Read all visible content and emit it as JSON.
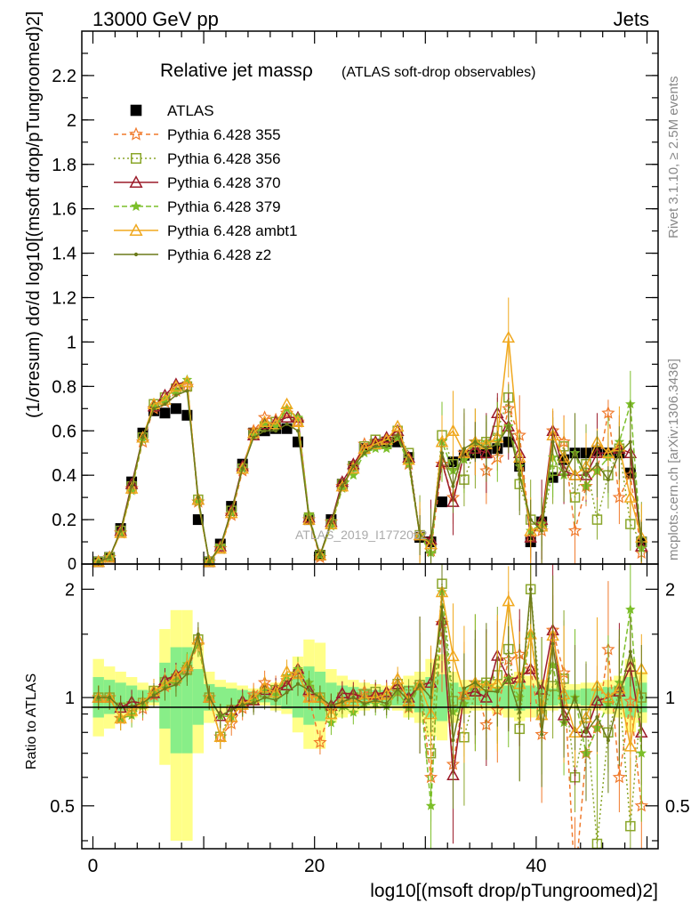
{
  "header": {
    "left": "13000 GeV pp",
    "right": "Jets",
    "title_main": "Relative jet massρ",
    "title_sub": "(ATLAS soft-drop observables)",
    "side_right": "Rivet 3.1.10, ≥ 2.5M events",
    "side_right2": "mcplots.cern.ch [arXiv:1306.3436]",
    "watermark": "ATLAS_2019_I1772062"
  },
  "colors": {
    "ATLAS": "#000000",
    "p355": "#f07a2c",
    "p356": "#8aa62a",
    "p370": "#9b1b2a",
    "p379": "#7cbf2a",
    "ambt1": "#f0a81e",
    "z2": "#6b7a1a",
    "band_yellow": "#ffff88",
    "band_green": "#88ee88"
  },
  "chart_data": [
    {
      "type": "line",
      "ylabel": "(1/σresum) dσ/d log10[(msoft drop/pTungroomed)2]",
      "ylim": [
        0,
        2.4
      ],
      "xlim": [
        -1,
        51
      ],
      "yticks": [
        "0.2",
        "0.4",
        "0.6",
        "0.8",
        "1",
        "1.2",
        "1.4",
        "1.6",
        "1.8",
        "2",
        "2.2"
      ],
      "ytick_values": [
        0.2,
        0.4,
        0.6,
        0.8,
        1.0,
        1.2,
        1.4,
        1.6,
        1.8,
        2.0,
        2.2
      ],
      "ytick_zero": "0",
      "legend": [
        "ATLAS",
        "Pythia 6.428 355",
        "Pythia 6.428 356",
        "Pythia 6.428 370",
        "Pythia 6.428 379",
        "Pythia 6.428 ambt1",
        "Pythia 6.428 z2"
      ],
      "legend_placement": "top-left",
      "series": [
        {
          "name": "ATLAS",
          "x": [
            0.5,
            1.5,
            2.5,
            3.5,
            4.5,
            5.5,
            6.5,
            7.5,
            8.5,
            9.5,
            10.5,
            11.5,
            12.5,
            13.5,
            14.5,
            15.5,
            16.5,
            17.5,
            18.5,
            19.5,
            20.5,
            21.5,
            22.5,
            23.5,
            24.5,
            25.5,
            26.5,
            27.5,
            28.5,
            29.5,
            30.5,
            31.5,
            32.5,
            33.5,
            34.5,
            35.5,
            36.5,
            37.5,
            38.5,
            39.5,
            40.5,
            41.5,
            42.5,
            43.5,
            44.5,
            45.5,
            46.5,
            47.5,
            48.5,
            49.5
          ],
          "values": [
            0.01,
            0.03,
            0.16,
            0.37,
            0.59,
            0.69,
            0.68,
            0.7,
            0.67,
            0.2,
            0.01,
            0.09,
            0.26,
            0.45,
            0.59,
            0.6,
            0.61,
            0.61,
            0.55,
            0.2,
            0.04,
            0.2,
            0.36,
            0.44,
            0.52,
            0.54,
            0.55,
            0.55,
            0.48,
            0.12,
            0.1,
            0.28,
            0.46,
            0.49,
            0.5,
            0.5,
            0.52,
            0.55,
            0.44,
            0.1,
            0.19,
            0.39,
            0.47,
            0.5,
            0.5,
            0.51,
            0.5,
            0.5,
            0.41,
            0.1
          ]
        },
        {
          "name": "Pythia 6.428 355",
          "x": [
            0.5,
            1.5,
            2.5,
            3.5,
            4.5,
            5.5,
            6.5,
            7.5,
            8.5,
            9.5,
            10.5,
            11.5,
            12.5,
            13.5,
            14.5,
            15.5,
            16.5,
            17.5,
            18.5,
            19.5,
            20.5,
            21.5,
            22.5,
            23.5,
            24.5,
            25.5,
            26.5,
            27.5,
            28.5,
            29.5,
            30.5,
            31.5,
            32.5,
            33.5,
            34.5,
            35.5,
            36.5,
            37.5,
            38.5,
            39.5,
            40.5,
            41.5,
            42.5,
            43.5,
            44.5,
            45.5,
            46.5,
            47.5,
            48.5,
            49.5
          ],
          "values": [
            0.01,
            0.03,
            0.14,
            0.34,
            0.55,
            0.7,
            0.73,
            0.78,
            0.8,
            0.28,
            0.01,
            0.07,
            0.22,
            0.42,
            0.6,
            0.66,
            0.65,
            0.68,
            0.64,
            0.2,
            0.03,
            0.19,
            0.35,
            0.44,
            0.54,
            0.55,
            0.56,
            0.57,
            0.45,
            0.13,
            0.06,
            0.45,
            0.3,
            0.5,
            0.55,
            0.42,
            0.48,
            0.7,
            0.58,
            0.12,
            0.15,
            0.6,
            0.55,
            0.15,
            0.35,
            0.42,
            0.68,
            0.3,
            0.4,
            0.05
          ]
        },
        {
          "name": "Pythia 6.428 356",
          "x": [
            0.5,
            1.5,
            2.5,
            3.5,
            4.5,
            5.5,
            6.5,
            7.5,
            8.5,
            9.5,
            10.5,
            11.5,
            12.5,
            13.5,
            14.5,
            15.5,
            16.5,
            17.5,
            18.5,
            19.5,
            20.5,
            21.5,
            22.5,
            23.5,
            24.5,
            25.5,
            26.5,
            27.5,
            28.5,
            29.5,
            30.5,
            31.5,
            32.5,
            33.5,
            34.5,
            35.5,
            36.5,
            37.5,
            38.5,
            39.5,
            40.5,
            41.5,
            42.5,
            43.5,
            44.5,
            45.5,
            46.5,
            47.5,
            48.5,
            49.5
          ],
          "values": [
            0.01,
            0.03,
            0.15,
            0.35,
            0.57,
            0.72,
            0.75,
            0.79,
            0.8,
            0.29,
            0.01,
            0.07,
            0.24,
            0.43,
            0.58,
            0.62,
            0.64,
            0.66,
            0.64,
            0.21,
            0.04,
            0.18,
            0.36,
            0.44,
            0.53,
            0.56,
            0.54,
            0.6,
            0.5,
            0.13,
            0.07,
            0.58,
            0.45,
            0.38,
            0.52,
            0.55,
            0.6,
            0.75,
            0.36,
            0.2,
            0.17,
            0.42,
            0.53,
            0.3,
            0.45,
            0.2,
            0.4,
            0.52,
            0.18,
            0.1
          ]
        },
        {
          "name": "Pythia 6.428 370",
          "x": [
            0.5,
            1.5,
            2.5,
            3.5,
            4.5,
            5.5,
            6.5,
            7.5,
            8.5,
            9.5,
            10.5,
            11.5,
            12.5,
            13.5,
            14.5,
            15.5,
            16.5,
            17.5,
            18.5,
            19.5,
            20.5,
            21.5,
            22.5,
            23.5,
            24.5,
            25.5,
            26.5,
            27.5,
            28.5,
            29.5,
            30.5,
            31.5,
            32.5,
            33.5,
            34.5,
            35.5,
            36.5,
            37.5,
            38.5,
            39.5,
            40.5,
            41.5,
            42.5,
            43.5,
            44.5,
            45.5,
            46.5,
            47.5,
            48.5,
            49.5
          ],
          "values": [
            0.01,
            0.03,
            0.15,
            0.36,
            0.57,
            0.71,
            0.76,
            0.81,
            0.82,
            0.29,
            0.01,
            0.08,
            0.24,
            0.44,
            0.58,
            0.63,
            0.64,
            0.66,
            0.66,
            0.21,
            0.04,
            0.19,
            0.37,
            0.45,
            0.52,
            0.55,
            0.57,
            0.6,
            0.48,
            0.13,
            0.11,
            0.46,
            0.28,
            0.5,
            0.52,
            0.5,
            0.68,
            0.62,
            0.5,
            0.12,
            0.2,
            0.6,
            0.42,
            0.4,
            0.4,
            0.5,
            0.5,
            0.52,
            0.5,
            0.08
          ]
        },
        {
          "name": "Pythia 6.428 379",
          "x": [
            0.5,
            1.5,
            2.5,
            3.5,
            4.5,
            5.5,
            6.5,
            7.5,
            8.5,
            9.5,
            10.5,
            11.5,
            12.5,
            13.5,
            14.5,
            15.5,
            16.5,
            17.5,
            18.5,
            19.5,
            20.5,
            21.5,
            22.5,
            23.5,
            24.5,
            25.5,
            26.5,
            27.5,
            28.5,
            29.5,
            30.5,
            31.5,
            32.5,
            33.5,
            34.5,
            35.5,
            36.5,
            37.5,
            38.5,
            39.5,
            40.5,
            41.5,
            42.5,
            43.5,
            44.5,
            45.5,
            46.5,
            47.5,
            48.5,
            49.5
          ],
          "values": [
            0.01,
            0.03,
            0.14,
            0.33,
            0.56,
            0.71,
            0.74,
            0.78,
            0.83,
            0.28,
            0.01,
            0.08,
            0.23,
            0.43,
            0.58,
            0.63,
            0.62,
            0.7,
            0.66,
            0.22,
            0.04,
            0.17,
            0.34,
            0.4,
            0.5,
            0.52,
            0.52,
            0.57,
            0.45,
            0.13,
            0.05,
            0.55,
            0.42,
            0.47,
            0.55,
            0.55,
            0.55,
            0.62,
            0.44,
            0.15,
            0.18,
            0.48,
            0.4,
            0.5,
            0.35,
            0.42,
            0.48,
            0.55,
            0.72,
            0.07
          ]
        },
        {
          "name": "Pythia 6.428 ambt1",
          "x": [
            0.5,
            1.5,
            2.5,
            3.5,
            4.5,
            5.5,
            6.5,
            7.5,
            8.5,
            9.5,
            10.5,
            11.5,
            12.5,
            13.5,
            14.5,
            15.5,
            16.5,
            17.5,
            18.5,
            19.5,
            20.5,
            21.5,
            22.5,
            23.5,
            24.5,
            25.5,
            26.5,
            27.5,
            28.5,
            29.5,
            30.5,
            31.5,
            32.5,
            33.5,
            34.5,
            35.5,
            36.5,
            37.5,
            38.5,
            39.5,
            40.5,
            41.5,
            42.5,
            43.5,
            44.5,
            45.5,
            46.5,
            47.5,
            48.5,
            49.5
          ],
          "values": [
            0.01,
            0.03,
            0.14,
            0.34,
            0.57,
            0.72,
            0.74,
            0.8,
            0.82,
            0.29,
            0.01,
            0.07,
            0.23,
            0.43,
            0.59,
            0.64,
            0.63,
            0.72,
            0.64,
            0.2,
            0.04,
            0.18,
            0.35,
            0.43,
            0.52,
            0.54,
            0.56,
            0.62,
            0.47,
            0.13,
            0.09,
            0.55,
            0.6,
            0.5,
            0.55,
            0.54,
            0.57,
            1.02,
            0.48,
            0.15,
            0.17,
            0.58,
            0.48,
            0.4,
            0.44,
            0.55,
            0.5,
            0.53,
            0.3,
            0.12
          ]
        },
        {
          "name": "Pythia 6.428 z2",
          "x": [
            0.5,
            1.5,
            2.5,
            3.5,
            4.5,
            5.5,
            6.5,
            7.5,
            8.5,
            9.5,
            10.5,
            11.5,
            12.5,
            13.5,
            14.5,
            15.5,
            16.5,
            17.5,
            18.5,
            19.5,
            20.5,
            21.5,
            22.5,
            23.5,
            24.5,
            25.5,
            26.5,
            27.5,
            28.5,
            29.5,
            30.5,
            31.5,
            32.5,
            33.5,
            34.5,
            35.5,
            36.5,
            37.5,
            38.5,
            39.5,
            40.5,
            41.5,
            42.5,
            43.5,
            44.5,
            45.5,
            46.5,
            47.5,
            48.5,
            49.5
          ],
          "values": [
            0.01,
            0.03,
            0.15,
            0.35,
            0.57,
            0.7,
            0.72,
            0.76,
            0.78,
            0.3,
            0.01,
            0.08,
            0.24,
            0.43,
            0.57,
            0.6,
            0.6,
            0.63,
            0.6,
            0.21,
            0.04,
            0.19,
            0.35,
            0.44,
            0.5,
            0.53,
            0.53,
            0.58,
            0.47,
            0.13,
            0.1,
            0.5,
            0.35,
            0.52,
            0.55,
            0.52,
            0.54,
            0.62,
            0.4,
            0.2,
            0.15,
            0.55,
            0.4,
            0.5,
            0.4,
            0.45,
            0.38,
            0.5,
            0.55,
            0.1
          ]
        }
      ]
    },
    {
      "type": "line",
      "ylabel": "Ratio to ATLAS",
      "xlabel": "log10[(msoft drop/pTungroomed)2]",
      "ylim": [
        0.38,
        2.35
      ],
      "log_scale": true,
      "yticks_left": [
        "0.5",
        "1",
        "2"
      ],
      "yticks_right": [
        "0.5",
        "1",
        "2"
      ],
      "ytick_values": [
        0.5,
        1.0,
        2.0
      ],
      "xticks": [
        "0",
        "20",
        "40"
      ],
      "xtick_values": [
        0,
        20,
        40
      ],
      "bands": {
        "x": [
          0.5,
          1.5,
          2.5,
          3.5,
          4.5,
          5.5,
          6.5,
          7.5,
          8.5,
          9.5,
          10.5,
          11.5,
          12.5,
          13.5,
          14.5,
          15.5,
          16.5,
          17.5,
          18.5,
          19.5,
          20.5,
          21.5,
          22.5,
          23.5,
          24.5,
          25.5,
          26.5,
          27.5,
          28.5,
          29.5,
          30.5,
          31.5,
          32.5,
          33.5,
          34.5,
          35.5,
          36.5,
          37.5,
          38.5,
          39.5,
          40.5,
          41.5,
          42.5,
          43.5,
          44.5,
          45.5,
          46.5,
          47.5,
          48.5,
          49.5
        ],
        "yellow_lo": [
          0.78,
          0.82,
          0.85,
          0.88,
          0.92,
          0.95,
          0.65,
          0.4,
          0.4,
          0.7,
          0.85,
          0.9,
          0.92,
          0.94,
          0.95,
          0.95,
          0.92,
          0.9,
          0.8,
          0.72,
          0.72,
          0.85,
          0.88,
          0.9,
          0.92,
          0.93,
          0.94,
          0.92,
          0.88,
          0.85,
          0.78,
          0.76,
          0.85,
          0.9,
          0.92,
          0.92,
          0.9,
          0.88,
          0.86,
          0.88,
          0.9,
          0.92,
          0.93,
          0.93,
          0.92,
          0.92,
          0.9,
          0.88,
          0.8,
          0.85
        ],
        "yellow_hi": [
          1.28,
          1.22,
          1.18,
          1.14,
          1.1,
          1.08,
          1.55,
          1.75,
          1.75,
          1.42,
          1.18,
          1.12,
          1.1,
          1.08,
          1.06,
          1.06,
          1.1,
          1.15,
          1.3,
          1.45,
          1.42,
          1.2,
          1.15,
          1.12,
          1.1,
          1.09,
          1.08,
          1.1,
          1.15,
          1.18,
          1.28,
          1.32,
          1.18,
          1.12,
          1.1,
          1.1,
          1.12,
          1.15,
          1.18,
          1.15,
          1.12,
          1.1,
          1.09,
          1.09,
          1.1,
          1.1,
          1.12,
          1.15,
          1.28,
          1.18
        ],
        "green_lo": [
          0.88,
          0.9,
          0.92,
          0.94,
          0.96,
          0.97,
          0.82,
          0.7,
          0.7,
          0.84,
          0.92,
          0.94,
          0.95,
          0.96,
          0.97,
          0.97,
          0.95,
          0.93,
          0.88,
          0.84,
          0.86,
          0.92,
          0.93,
          0.94,
          0.95,
          0.96,
          0.96,
          0.95,
          0.93,
          0.91,
          0.88,
          0.86,
          0.91,
          0.94,
          0.95,
          0.95,
          0.94,
          0.93,
          0.92,
          0.93,
          0.94,
          0.95,
          0.96,
          0.96,
          0.95,
          0.95,
          0.94,
          0.93,
          0.88,
          0.91
        ],
        "green_hi": [
          1.14,
          1.12,
          1.1,
          1.08,
          1.05,
          1.04,
          1.25,
          1.38,
          1.38,
          1.2,
          1.09,
          1.07,
          1.06,
          1.05,
          1.04,
          1.04,
          1.06,
          1.09,
          1.15,
          1.22,
          1.18,
          1.1,
          1.08,
          1.07,
          1.06,
          1.05,
          1.05,
          1.06,
          1.08,
          1.1,
          1.14,
          1.16,
          1.1,
          1.07,
          1.06,
          1.06,
          1.07,
          1.08,
          1.1,
          1.08,
          1.07,
          1.06,
          1.05,
          1.05,
          1.06,
          1.06,
          1.07,
          1.08,
          1.14,
          1.1
        ]
      }
    }
  ]
}
